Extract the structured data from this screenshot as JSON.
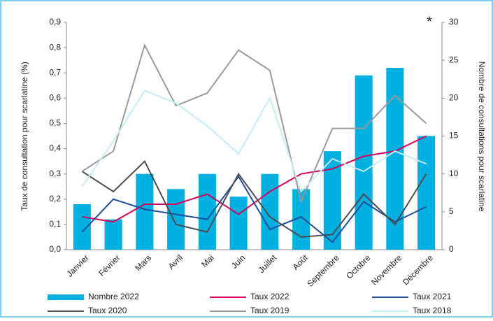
{
  "chart_data": {
    "type": "bar",
    "y_label": "Taux de consultation pour scarlatine (%)",
    "y2_label": "Nombre de consultations pour scarlatine",
    "annotation": "*",
    "categories": [
      "Janvier",
      "Février",
      "Mars",
      "Avril",
      "Mai",
      "Juin",
      "Juillet",
      "Août",
      "Septembre",
      "Octobre",
      "Novembre",
      "Décembre"
    ],
    "ylim": [
      0,
      0.9
    ],
    "yticks": [
      {
        "value": 0,
        "label": "0,0"
      },
      {
        "value": 0.1,
        "label": "0,1"
      },
      {
        "value": 0.2,
        "label": "0,2"
      },
      {
        "value": 0.3,
        "label": "0,3"
      },
      {
        "value": 0.4,
        "label": "0,4"
      },
      {
        "value": 0.5,
        "label": "0,5"
      },
      {
        "value": 0.6,
        "label": "0,6"
      },
      {
        "value": 0.7,
        "label": "0,7"
      },
      {
        "value": 0.8,
        "label": "0,8"
      },
      {
        "value": 0.9,
        "label": "0,9"
      }
    ],
    "y2lim": [
      0,
      30
    ],
    "y2ticks": [
      0,
      5,
      10,
      15,
      20,
      25,
      30
    ],
    "series": [
      {
        "name": "Nombre 2022",
        "type": "bar",
        "axis": "y2",
        "color": "#00b0e0",
        "values": [
          6,
          4,
          10,
          8,
          10,
          7,
          10,
          8,
          13,
          23,
          24,
          15
        ]
      },
      {
        "name": "Taux 2022",
        "type": "line",
        "color": "#d6005a",
        "values": [
          0.13,
          0.11,
          0.18,
          0.18,
          0.22,
          0.14,
          0.23,
          0.3,
          0.32,
          0.37,
          0.39,
          0.45
        ]
      },
      {
        "name": "Taux 2021",
        "type": "line",
        "color": "#1f4e9a",
        "values": [
          0.07,
          0.2,
          0.16,
          0.14,
          0.12,
          0.29,
          0.08,
          0.13,
          0.03,
          0.19,
          0.11,
          0.17
        ]
      },
      {
        "name": "Taux 2020",
        "type": "line",
        "color": "#4d4d4d",
        "values": [
          0.31,
          0.23,
          0.35,
          0.1,
          0.07,
          0.3,
          0.13,
          0.05,
          0.06,
          0.22,
          0.1,
          0.3
        ]
      },
      {
        "name": "Taux 2019",
        "type": "line",
        "color": "#999999",
        "values": [
          0.31,
          0.39,
          0.81,
          0.57,
          0.62,
          0.79,
          0.71,
          0.19,
          0.48,
          0.48,
          0.61,
          0.5
        ]
      },
      {
        "name": "Taux 2018",
        "type": "line",
        "color": "#c4ecf7",
        "values": [
          0.25,
          0.43,
          0.63,
          0.58,
          0.49,
          0.38,
          0.6,
          0.23,
          0.36,
          0.31,
          0.39,
          0.34
        ]
      }
    ]
  }
}
